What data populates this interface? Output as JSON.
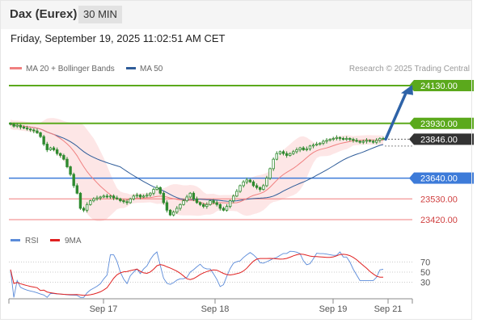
{
  "header": {
    "title": "Dax (Eurex)",
    "interval": "30 MIN"
  },
  "datetime": "Friday, September 19, 2025 11:02:51 AM CET",
  "legend": [
    {
      "label": "MA 20 + Bollinger Bands",
      "color": "#f08080"
    },
    {
      "label": "MA 50",
      "color": "#2e5c99"
    }
  ],
  "credit": "Research © 2025 Trading Central",
  "rsi_legend": [
    {
      "label": "RSI",
      "color": "#5b8bd9"
    },
    {
      "label": "9MA",
      "color": "#e02020"
    }
  ],
  "colors": {
    "resistance": "#5ba91c",
    "support_blue": "#3d7bd9",
    "support_red": "#f07c7c",
    "candle": "#2f8a2f",
    "current": "#333333",
    "arrow": "#2e63a8"
  },
  "chart_data": [
    {
      "type": "candlestick",
      "x_ticks": [
        "Sep 17",
        "Sep 18",
        "Sep 19",
        "Sep 21"
      ],
      "ylim": [
        23380,
        24160
      ],
      "levels": [
        {
          "label": "24130.00",
          "value": 24130,
          "kind": "resistance"
        },
        {
          "label": "23930.00",
          "value": 23930,
          "kind": "resistance"
        },
        {
          "label": "23846.00",
          "value": 23846,
          "kind": "current"
        },
        {
          "label": "23640.00",
          "value": 23640,
          "kind": "support_blue"
        },
        {
          "label": "23530.00",
          "value": 23530,
          "kind": "support_red"
        },
        {
          "label": "23420.00",
          "value": 23420,
          "kind": "support_red"
        }
      ],
      "close_path": [
        23925,
        23915,
        23920,
        23910,
        23905,
        23900,
        23895,
        23890,
        23880,
        23860,
        23820,
        23790,
        23800,
        23790,
        23770,
        23760,
        23740,
        23700,
        23660,
        23600,
        23560,
        23480,
        23470,
        23500,
        23520,
        23530,
        23535,
        23540,
        23545,
        23540,
        23545,
        23535,
        23530,
        23520,
        23515,
        23510,
        23530,
        23545,
        23550,
        23540,
        23545,
        23550,
        23560,
        23580,
        23590,
        23560,
        23510,
        23470,
        23445,
        23460,
        23480,
        23500,
        23520,
        23540,
        23560,
        23530,
        23510,
        23500,
        23490,
        23500,
        23520,
        23510,
        23500,
        23480,
        23470,
        23490,
        23520,
        23545,
        23570,
        23600,
        23620,
        23630,
        23620,
        23600,
        23590,
        23580,
        23600,
        23640,
        23690,
        23740,
        23770,
        23780,
        23770,
        23760,
        23770,
        23780,
        23790,
        23800,
        23790,
        23795,
        23810,
        23815,
        23820,
        23825,
        23835,
        23840,
        23845,
        23850,
        23855,
        23850,
        23845,
        23850,
        23845,
        23840,
        23835,
        23830,
        23835,
        23840,
        23835,
        23830,
        23840,
        23850,
        23846
      ]
    },
    {
      "type": "line",
      "name": "RSI",
      "y_ticks": [
        70,
        50,
        30
      ],
      "ylim": [
        10,
        90
      ]
    }
  ]
}
